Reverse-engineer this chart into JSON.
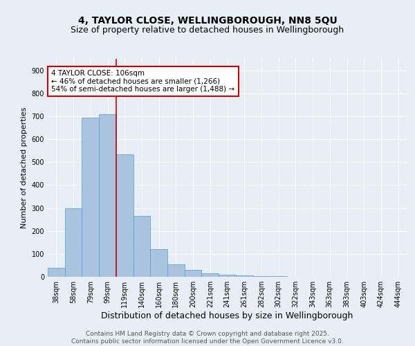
{
  "title": "4, TAYLOR CLOSE, WELLINGBOROUGH, NN8 5QU",
  "subtitle": "Size of property relative to detached houses in Wellingborough",
  "xlabel": "Distribution of detached houses by size in Wellingborough",
  "ylabel": "Number of detached properties",
  "categories": [
    "38sqm",
    "58sqm",
    "79sqm",
    "99sqm",
    "119sqm",
    "140sqm",
    "160sqm",
    "180sqm",
    "200sqm",
    "221sqm",
    "241sqm",
    "261sqm",
    "282sqm",
    "302sqm",
    "322sqm",
    "343sqm",
    "363sqm",
    "383sqm",
    "403sqm",
    "424sqm",
    "444sqm"
  ],
  "values": [
    40,
    300,
    695,
    710,
    535,
    265,
    120,
    55,
    30,
    15,
    8,
    5,
    3,
    2,
    1,
    1,
    1,
    0,
    0,
    0,
    0
  ],
  "bar_color": "#aac4e0",
  "bar_edge_color": "#5599cc",
  "background_color": "#e8eef5",
  "grid_color": "#ffffff",
  "annotation_text": "4 TAYLOR CLOSE: 106sqm\n← 46% of detached houses are smaller (1,266)\n54% of semi-detached houses are larger (1,488) →",
  "annotation_box_color": "#ffffff",
  "annotation_box_edge_color": "#cc0000",
  "vline_color": "#cc0000",
  "ylim": [
    0,
    950
  ],
  "yticks": [
    0,
    100,
    200,
    300,
    400,
    500,
    600,
    700,
    800,
    900
  ],
  "footer_text": "Contains HM Land Registry data © Crown copyright and database right 2025.\nContains public sector information licensed under the Open Government Licence v3.0.",
  "title_fontsize": 10,
  "subtitle_fontsize": 9,
  "xlabel_fontsize": 9,
  "ylabel_fontsize": 8,
  "tick_fontsize": 7,
  "annotation_fontsize": 7.5,
  "footer_fontsize": 6.5
}
